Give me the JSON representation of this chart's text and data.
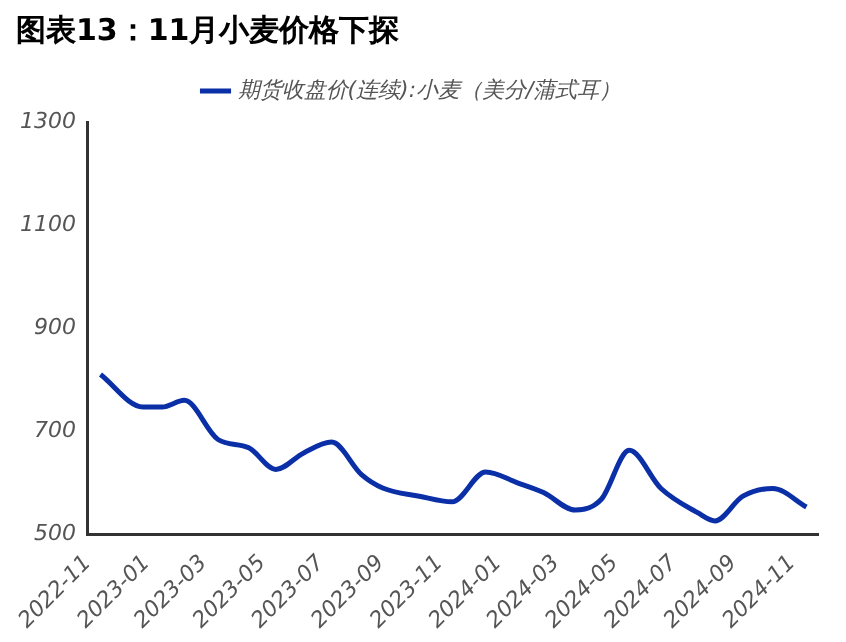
{
  "chart_data": {
    "type": "line",
    "title": "图表13：11月小麦价格下探",
    "x": [
      "2022-11-14",
      "2022-12-28",
      "2023-01-17",
      "2023-02-09",
      "2023-03-16",
      "2023-04-17",
      "2023-05-15",
      "2023-06-13",
      "2023-07-12",
      "2023-08-12",
      "2023-09-03",
      "2023-10-11",
      "2023-11-14",
      "2023-12-19",
      "2024-01-21",
      "2024-02-17",
      "2024-03-21",
      "2024-04-17",
      "2024-05-16",
      "2024-06-18",
      "2024-07-26",
      "2024-08-13",
      "2024-09-11",
      "2024-10-12",
      "2024-11-16"
    ],
    "series": [
      {
        "name": "期货收盘价(连续):小麦（美分/蒲式耳）",
        "color": "#0a2fa6",
        "values": [
          810,
          747,
          747,
          760,
          684,
          668,
          626,
          658,
          679,
          616,
          590,
          574,
          563,
          621,
          600,
          581,
          547,
          568,
          663,
          589,
          542,
          526,
          574,
          589,
          553
        ]
      }
    ],
    "xlim": [
      "2022-11-01",
      "2024-11-28"
    ],
    "xticks": [
      "2022-11",
      "2023-01",
      "2023-03",
      "2023-05",
      "2023-07",
      "2023-09",
      "2023-11",
      "2024-01",
      "2024-03",
      "2024-05",
      "2024-07",
      "2024-09",
      "2024-11"
    ],
    "ylim": [
      500,
      1300
    ],
    "yticks": [
      500,
      700,
      900,
      1100,
      1300
    ],
    "grid": false,
    "legend": "top",
    "marker": "none",
    "line_style": "solid"
  }
}
